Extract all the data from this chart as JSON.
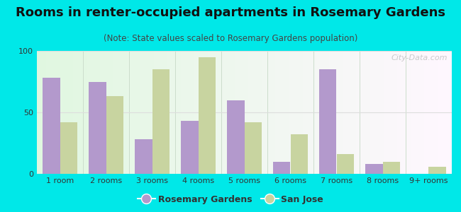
{
  "title": "Rooms in renter-occupied apartments in Rosemary Gardens",
  "subtitle": "(Note: State values scaled to Rosemary Gardens population)",
  "categories": [
    "1 room",
    "2 rooms",
    "3 rooms",
    "4 rooms",
    "5 rooms",
    "6 rooms",
    "7 rooms",
    "8 rooms",
    "9+ rooms"
  ],
  "rosemary_values": [
    78,
    75,
    28,
    43,
    60,
    10,
    85,
    8,
    0
  ],
  "sanjose_values": [
    42,
    63,
    85,
    95,
    42,
    32,
    16,
    10,
    6
  ],
  "rosemary_color": "#b399cc",
  "sanjose_color": "#c8d4a0",
  "background_color": "#00e8e8",
  "ylim": [
    0,
    100
  ],
  "yticks": [
    0,
    50,
    100
  ],
  "bar_width": 0.38,
  "title_fontsize": 13,
  "subtitle_fontsize": 8.5,
  "axis_fontsize": 8,
  "legend_fontsize": 9,
  "watermark_text": "City-Data.com"
}
